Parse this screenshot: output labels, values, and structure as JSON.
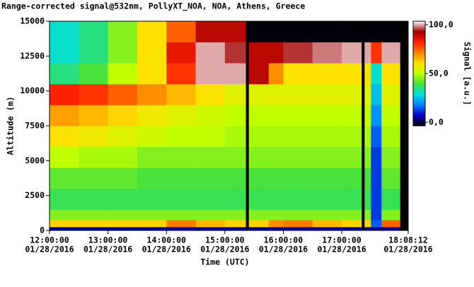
{
  "chart_data": {
    "type": "heatmap",
    "title": "Range-corrected signal@532nm, PollyXT_NOA, NOA, Athens, Greece",
    "x_label": "Time (UTC)",
    "y_label": "Altitude (m)",
    "colorbar_label": "Signal [a.u.]",
    "x_edges": [
      12,
      12.5,
      13,
      13.5,
      14,
      14.5,
      15,
      15.36,
      15.41,
      15.75,
      16,
      16.5,
      17,
      17.34,
      17.39,
      17.5,
      17.68,
      18,
      18.1367
    ],
    "y_edges": [
      0,
      250,
      750,
      1500,
      3000,
      4500,
      6000,
      7500,
      9000,
      10500,
      12000,
      13500,
      15000
    ],
    "values": [
      [
        5,
        5,
        5,
        5,
        5,
        5,
        5,
        null,
        5,
        5,
        5,
        5,
        5,
        null,
        5,
        3,
        5,
        null
      ],
      [
        62,
        62,
        62,
        62,
        72,
        65,
        62,
        null,
        62,
        70,
        72,
        65,
        62,
        null,
        62,
        15,
        75,
        null
      ],
      [
        45,
        45,
        45,
        45,
        45,
        45,
        45,
        null,
        45,
        45,
        45,
        45,
        45,
        null,
        45,
        12,
        45,
        null
      ],
      [
        38,
        38,
        38,
        38,
        38,
        38,
        38,
        null,
        38,
        38,
        38,
        38,
        38,
        null,
        38,
        12,
        38,
        null
      ],
      [
        42,
        42,
        42,
        40,
        40,
        40,
        40,
        null,
        40,
        40,
        40,
        40,
        40,
        null,
        40,
        12,
        42,
        null
      ],
      [
        50,
        48,
        48,
        45,
        45,
        45,
        45,
        null,
        45,
        45,
        45,
        45,
        45,
        null,
        45,
        12,
        45,
        null
      ],
      [
        60,
        58,
        55,
        52,
        50,
        50,
        48,
        null,
        48,
        48,
        48,
        48,
        48,
        null,
        48,
        15,
        48,
        null
      ],
      [
        68,
        65,
        62,
        58,
        55,
        52,
        50,
        null,
        50,
        50,
        50,
        50,
        50,
        null,
        50,
        20,
        50,
        null
      ],
      [
        82,
        80,
        75,
        70,
        65,
        60,
        55,
        null,
        55,
        55,
        55,
        55,
        55,
        null,
        55,
        25,
        55,
        null
      ],
      [
        35,
        40,
        50,
        60,
        80,
        100,
        100,
        null,
        90,
        70,
        60,
        60,
        60,
        null,
        60,
        30,
        60,
        null
      ],
      [
        30,
        35,
        45,
        60,
        85,
        100,
        95,
        null,
        90,
        90,
        95,
        98,
        100,
        null,
        100,
        80,
        100,
        null
      ],
      [
        30,
        35,
        45,
        60,
        75,
        90,
        90,
        null,
        -3,
        -3,
        -3,
        -3,
        -3,
        null,
        -3,
        -3,
        -3,
        null
      ]
    ],
    "null_color": "#000000",
    "colormap": [
      "#000000",
      "#0000c8",
      "#0080ff",
      "#00e0e0",
      "#40e040",
      "#c0ff00",
      "#ffe000",
      "#ff8000",
      "#ff2000",
      "#a00000",
      "#ffffff"
    ],
    "xlim": [
      12,
      18.1367
    ],
    "xticks": [
      {
        "value": 12,
        "label": [
          "12:00:00",
          "01/28/2016"
        ]
      },
      {
        "value": 13,
        "label": [
          "13:00:00",
          "01/28/2016"
        ]
      },
      {
        "value": 14,
        "label": [
          "14:00:00",
          "01/28/2016"
        ]
      },
      {
        "value": 15,
        "label": [
          "15:00:00",
          "01/28/2016"
        ]
      },
      {
        "value": 16,
        "label": [
          "16:00:00",
          "01/28/2016"
        ]
      },
      {
        "value": 17,
        "label": [
          "17:00:00",
          "01/28/2016"
        ]
      },
      {
        "value": 18.1367,
        "label": [
          "18:08:12",
          "01/28/2016"
        ]
      }
    ],
    "ylim": [
      0,
      15000
    ],
    "yticks": [
      0,
      2500,
      5000,
      7500,
      10000,
      12500,
      15000
    ],
    "clim": [
      -3.6,
      103.6
    ],
    "cticks": [
      {
        "value": 0,
        "label": "0,0"
      },
      {
        "value": 50,
        "label": "50,0"
      },
      {
        "value": 100,
        "label": "100,0"
      }
    ]
  }
}
